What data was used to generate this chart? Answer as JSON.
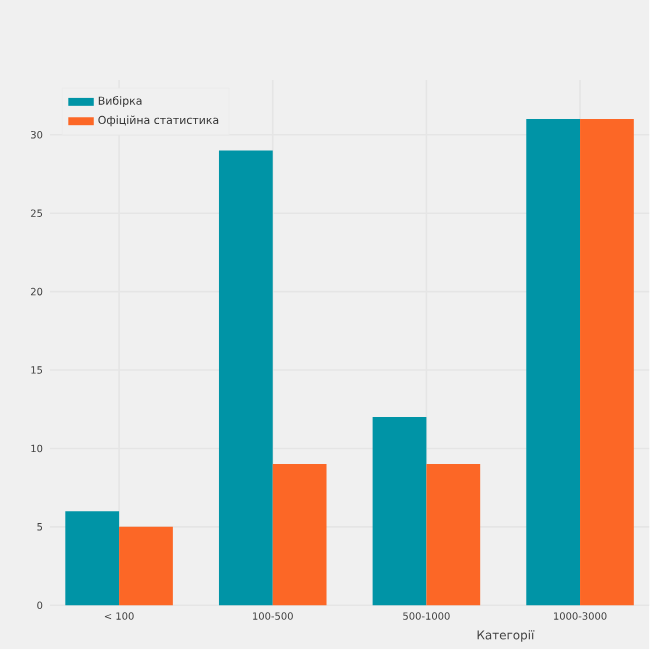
{
  "chart_data": {
    "type": "bar",
    "xlabel": "Категорії",
    "categories": [
      "< 100",
      "100-500",
      "500-1000",
      "1000-3000"
    ],
    "series": [
      {
        "name": "Вибірка",
        "color": "#0094a6",
        "values": [
          6,
          29,
          12,
          31
        ]
      },
      {
        "name": "Офіційна статистика",
        "color": "#fc6726",
        "values": [
          5,
          9,
          9,
          31
        ]
      }
    ],
    "ylim": [
      0,
      33.5
    ],
    "yticks": [
      0,
      5,
      10,
      15,
      20,
      25,
      30
    ],
    "grid": true,
    "legend": "top left"
  }
}
